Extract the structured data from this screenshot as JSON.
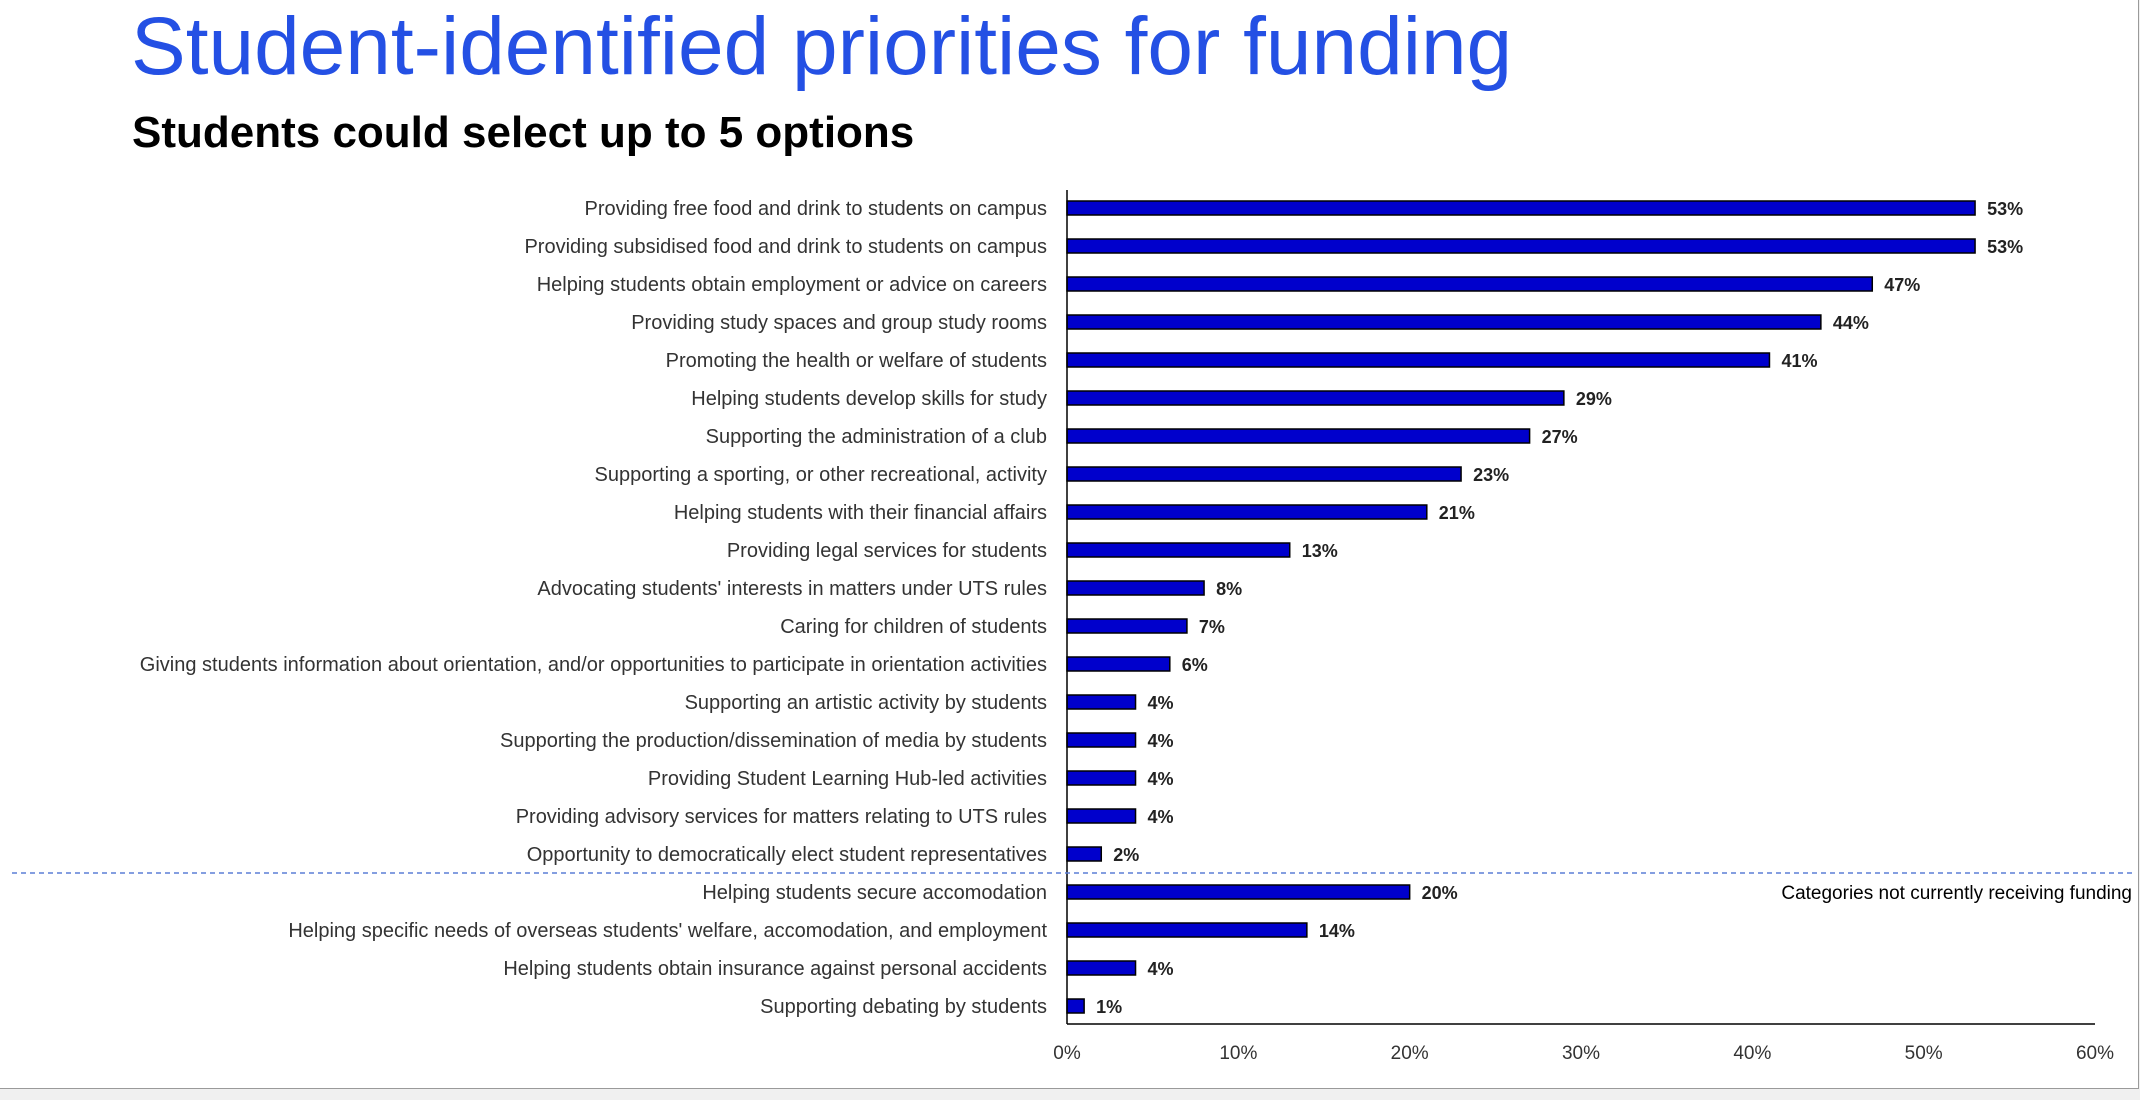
{
  "title": "Student-identified priorities for funding",
  "subtitle": "Students could select up to 5 options",
  "colors": {
    "title": "#2450e4",
    "bar_fill": "#0000cc",
    "bar_stroke": "#000000",
    "divider": "#5b7fd6",
    "axis": "#000000"
  },
  "chart_data": {
    "type": "bar",
    "orientation": "horizontal",
    "categories": [
      "Providing free food and drink to students on campus",
      "Providing subsidised food and drink to students on campus",
      "Helping students obtain employment or advice on careers",
      "Providing study spaces and group study rooms",
      "Promoting the health or welfare of students",
      "Helping students develop skills for study",
      "Supporting the administration of a club",
      "Supporting a sporting, or other recreational, activity",
      "Helping students with their financial affairs",
      "Providing legal services for students",
      "Advocating students' interests in matters under UTS rules",
      "Caring for children of students",
      "Giving students information about orientation, and/or opportunities to participate in orientation activities",
      "Supporting an artistic activity by students",
      "Supporting the production/dissemination of media by students",
      "Providing Student Learning Hub-led activities",
      "Providing advisory services for matters relating to UTS rules",
      "Opportunity to democratically elect student representatives",
      "Helping students secure accomodation",
      "Helping specific needs of overseas students' welfare, accomodation, and employment",
      "Helping students obtain insurance against personal accidents",
      "Supporting debating by students"
    ],
    "values": [
      53,
      53,
      47,
      44,
      41,
      29,
      27,
      23,
      21,
      13,
      8,
      7,
      6,
      4,
      4,
      4,
      4,
      2,
      20,
      14,
      4,
      1
    ],
    "data_labels": [
      "53%",
      "53%",
      "47%",
      "44%",
      "41%",
      "29%",
      "27%",
      "23%",
      "21%",
      "13%",
      "8%",
      "7%",
      "6%",
      "4%",
      "4%",
      "4%",
      "4%",
      "2%",
      "20%",
      "14%",
      "4%",
      "1%"
    ],
    "xlim": [
      0,
      60
    ],
    "xticks": [
      0,
      10,
      20,
      30,
      40,
      50,
      60
    ],
    "xtick_labels": [
      "0%",
      "10%",
      "20%",
      "30%",
      "40%",
      "50%",
      "60%"
    ],
    "unit": "%",
    "divider_after_index": 17,
    "annotation": "Categories not currently receiving funding",
    "grid": false,
    "legend": "none"
  }
}
